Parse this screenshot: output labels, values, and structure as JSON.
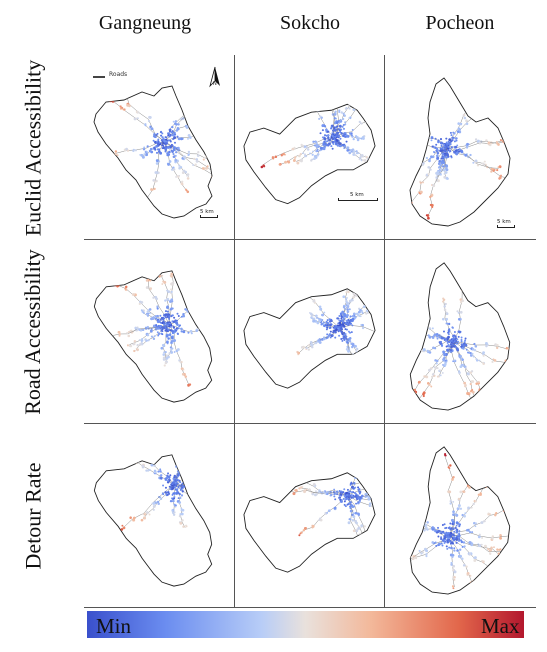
{
  "columns": [
    "Gangneung",
    "Sokcho",
    "Pocheon"
  ],
  "rows": [
    "Euclid Accessibility",
    "Road Accessibility",
    "Detour Rate"
  ],
  "map_legend": {
    "roads_label": "Roads",
    "north_label": "N"
  },
  "scale_bars": {
    "gangneung": "5 km",
    "sokcho": "5 km",
    "pocheon": "5 km"
  },
  "colorbar": {
    "min_label": "Min",
    "max_label": "Max",
    "colors": [
      "#3a50cc",
      "#6b8df0",
      "#b8cdf7",
      "#e9e1dc",
      "#f3b89a",
      "#e2674b",
      "#b3172e"
    ]
  }
}
